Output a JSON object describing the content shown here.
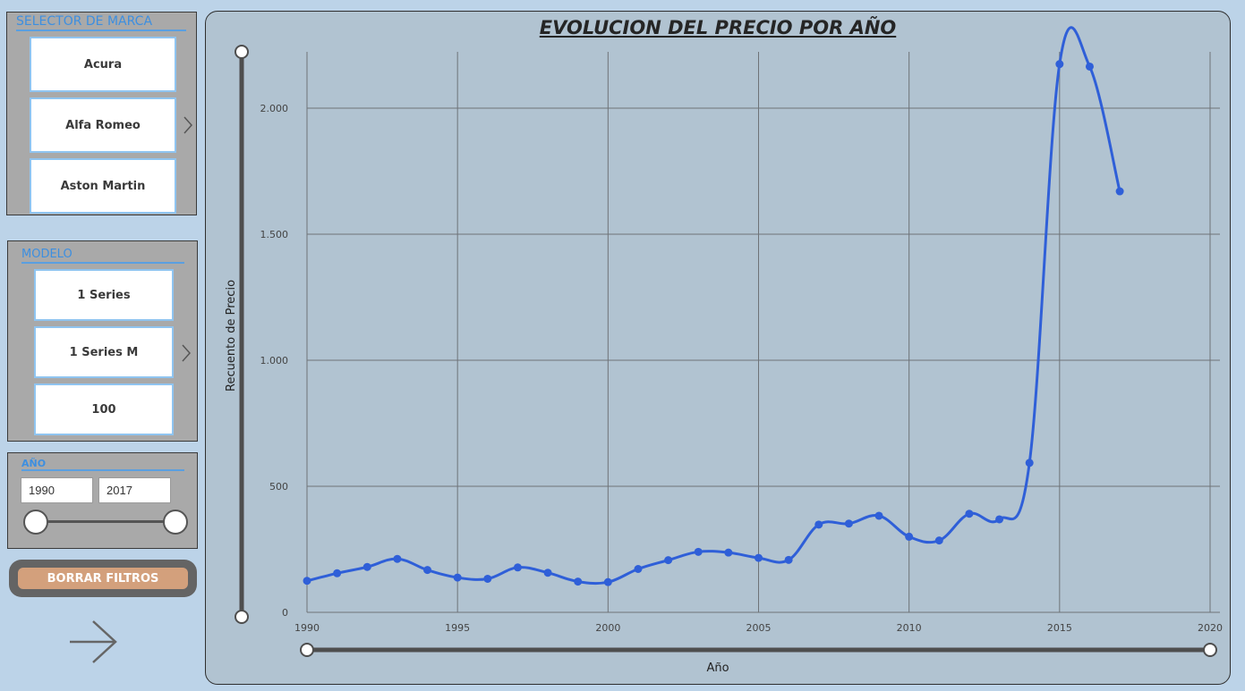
{
  "brand_slicer": {
    "title": "SELECTOR DE MARCA",
    "items": [
      "Acura",
      "Alfa Romeo",
      "Aston Martin"
    ]
  },
  "model_slicer": {
    "title": "MODELO",
    "items": [
      "1 Series",
      "1 Series M",
      "100"
    ]
  },
  "year_slicer": {
    "title": "AÑO",
    "start": "1990",
    "end": "2017"
  },
  "reset_button": {
    "label": "BORRAR FILTROS"
  },
  "icons": {
    "next_page": "arrow-right-icon",
    "scroll_right": "chevron-right-icon"
  },
  "colors": {
    "series": "#2f5fd8",
    "panel_accent": "#3d8fe0",
    "reset_button": "#d3a07c"
  },
  "chart_data": {
    "type": "line",
    "title": "EVOLUCION DEL PRECIO POR AÑO",
    "xlabel": "Año",
    "ylabel": "Recuento de Precio",
    "xlim": [
      1990,
      2020
    ],
    "ylim": [
      0,
      2200
    ],
    "x_ticks": [
      1990,
      1995,
      2000,
      2005,
      2010,
      2015,
      2020
    ],
    "x_tick_labels": [
      "1990",
      "1995",
      "2000",
      "2005",
      "2010",
      "2015",
      "2020"
    ],
    "y_ticks": [
      0,
      500,
      1000,
      1500,
      2000
    ],
    "y_tick_labels": [
      "0",
      "500",
      "1.000",
      "1.500",
      "2.000"
    ],
    "grid": true,
    "series": [
      {
        "x": [
          1990,
          1991,
          1992,
          1993,
          1994,
          1995,
          1996,
          1997,
          1998,
          1999,
          2000,
          2001,
          2002,
          2003,
          2004,
          2005,
          2006,
          2007,
          2008,
          2009,
          2010,
          2011,
          2012,
          2013,
          2014,
          2015,
          2016,
          2017
        ],
        "values": [
          125,
          155,
          180,
          212,
          168,
          138,
          133,
          178,
          157,
          122,
          120,
          172,
          207,
          240,
          237,
          216,
          208,
          348,
          352,
          383,
          300,
          285,
          391,
          369,
          593,
          2175,
          2165,
          1670
        ]
      }
    ]
  }
}
